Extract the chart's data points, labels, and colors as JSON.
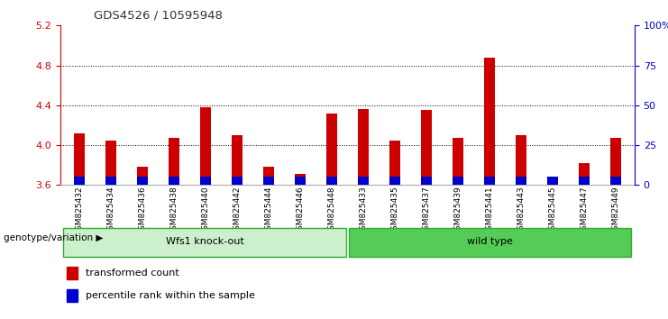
{
  "title": "GDS4526 / 10595948",
  "samples": [
    "GSM825432",
    "GSM825434",
    "GSM825436",
    "GSM825438",
    "GSM825440",
    "GSM825442",
    "GSM825444",
    "GSM825446",
    "GSM825448",
    "GSM825433",
    "GSM825435",
    "GSM825437",
    "GSM825439",
    "GSM825441",
    "GSM825443",
    "GSM825445",
    "GSM825447",
    "GSM825449"
  ],
  "red_values": [
    4.12,
    4.05,
    3.78,
    4.07,
    4.38,
    4.1,
    3.78,
    3.71,
    4.32,
    4.36,
    4.05,
    4.35,
    4.07,
    4.88,
    4.1,
    3.66,
    3.82,
    4.07
  ],
  "blue_values": [
    0.08,
    0.08,
    0.08,
    0.08,
    0.08,
    0.08,
    0.08,
    0.08,
    0.08,
    0.08,
    0.08,
    0.08,
    0.08,
    0.08,
    0.08,
    0.08,
    0.08,
    0.08
  ],
  "base": 3.6,
  "ylim_left": [
    3.6,
    5.2
  ],
  "yticks_left": [
    3.6,
    4.0,
    4.4,
    4.8,
    5.2
  ],
  "ylim_right": [
    0,
    100
  ],
  "yticks_right": [
    0,
    25,
    50,
    75,
    100
  ],
  "ytick_labels_right": [
    "0",
    "25",
    "50",
    "75",
    "100%"
  ],
  "group1_label": "Wfs1 knock-out",
  "group2_label": "wild type",
  "group1_count": 9,
  "group2_count": 9,
  "genotype_label": "genotype/variation",
  "legend1": "transformed count",
  "legend2": "percentile rank within the sample",
  "red_color": "#cc0000",
  "blue_color": "#0000cc",
  "group1_bg_light": "#ccf0cc",
  "group2_bg_light": "#55cc55",
  "title_color": "#333333",
  "left_axis_color": "#cc0000",
  "right_axis_color": "#0000cc",
  "grid_color": "#000000"
}
